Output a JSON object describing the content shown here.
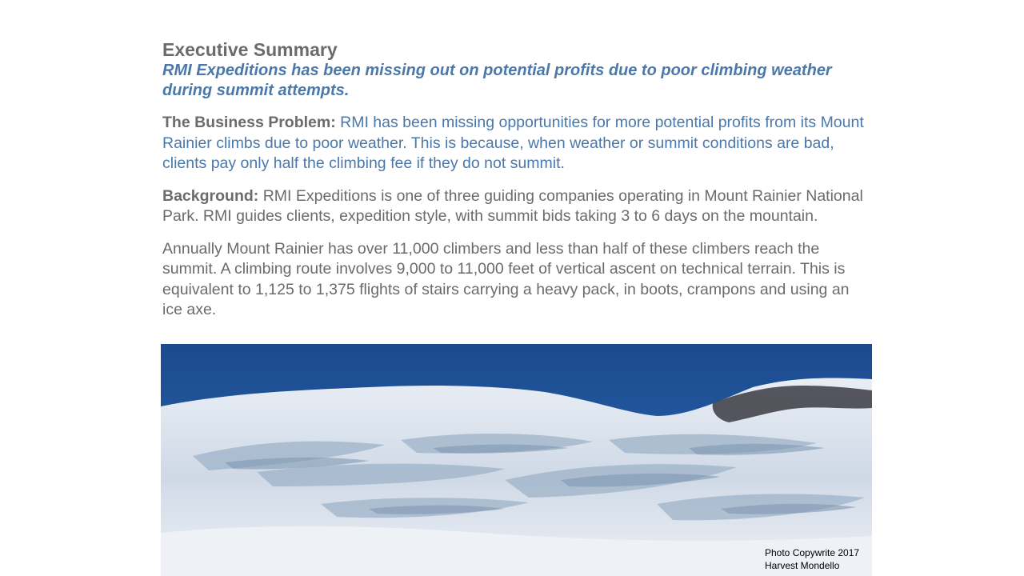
{
  "slide": {
    "title": "Executive Summary",
    "subtitle": "RMI Expeditions has been missing out on potential profits due to poor climbing weather during summit attempts.",
    "business_problem": {
      "lead": "The Business Problem:",
      "text": "RMI has been missing opportunities for more potential profits from its Mount Rainier climbs due to poor weather. This is because, when weather or summit conditions are bad, clients pay only half the climbing fee if they do not summit."
    },
    "background": {
      "lead": "Background:",
      "text": "RMI Expeditions is one of three guiding companies operating in Mount Rainier National Park. RMI guides clients, expedition style, with summit bids taking 3 to 6 days on the mountain."
    },
    "annual_paragraph": "Annually Mount Rainier has over 11,000 climbers and less than half of these climbers reach the summit. A climbing route involves 9,000 to 11,000 feet of vertical ascent on technical terrain. This is equivalent to 1,125 to 1,375 flights of stairs carrying a heavy pack, in boots, crampons and using an ice axe.",
    "photo_credit_line1": "Photo Copywrite 2017",
    "photo_credit_line2": "Harvest Mondello"
  },
  "colors": {
    "heading_gray": "#6b6b6b",
    "accent_blue": "#4a78aa",
    "sky_blue": "#1f4f94"
  }
}
